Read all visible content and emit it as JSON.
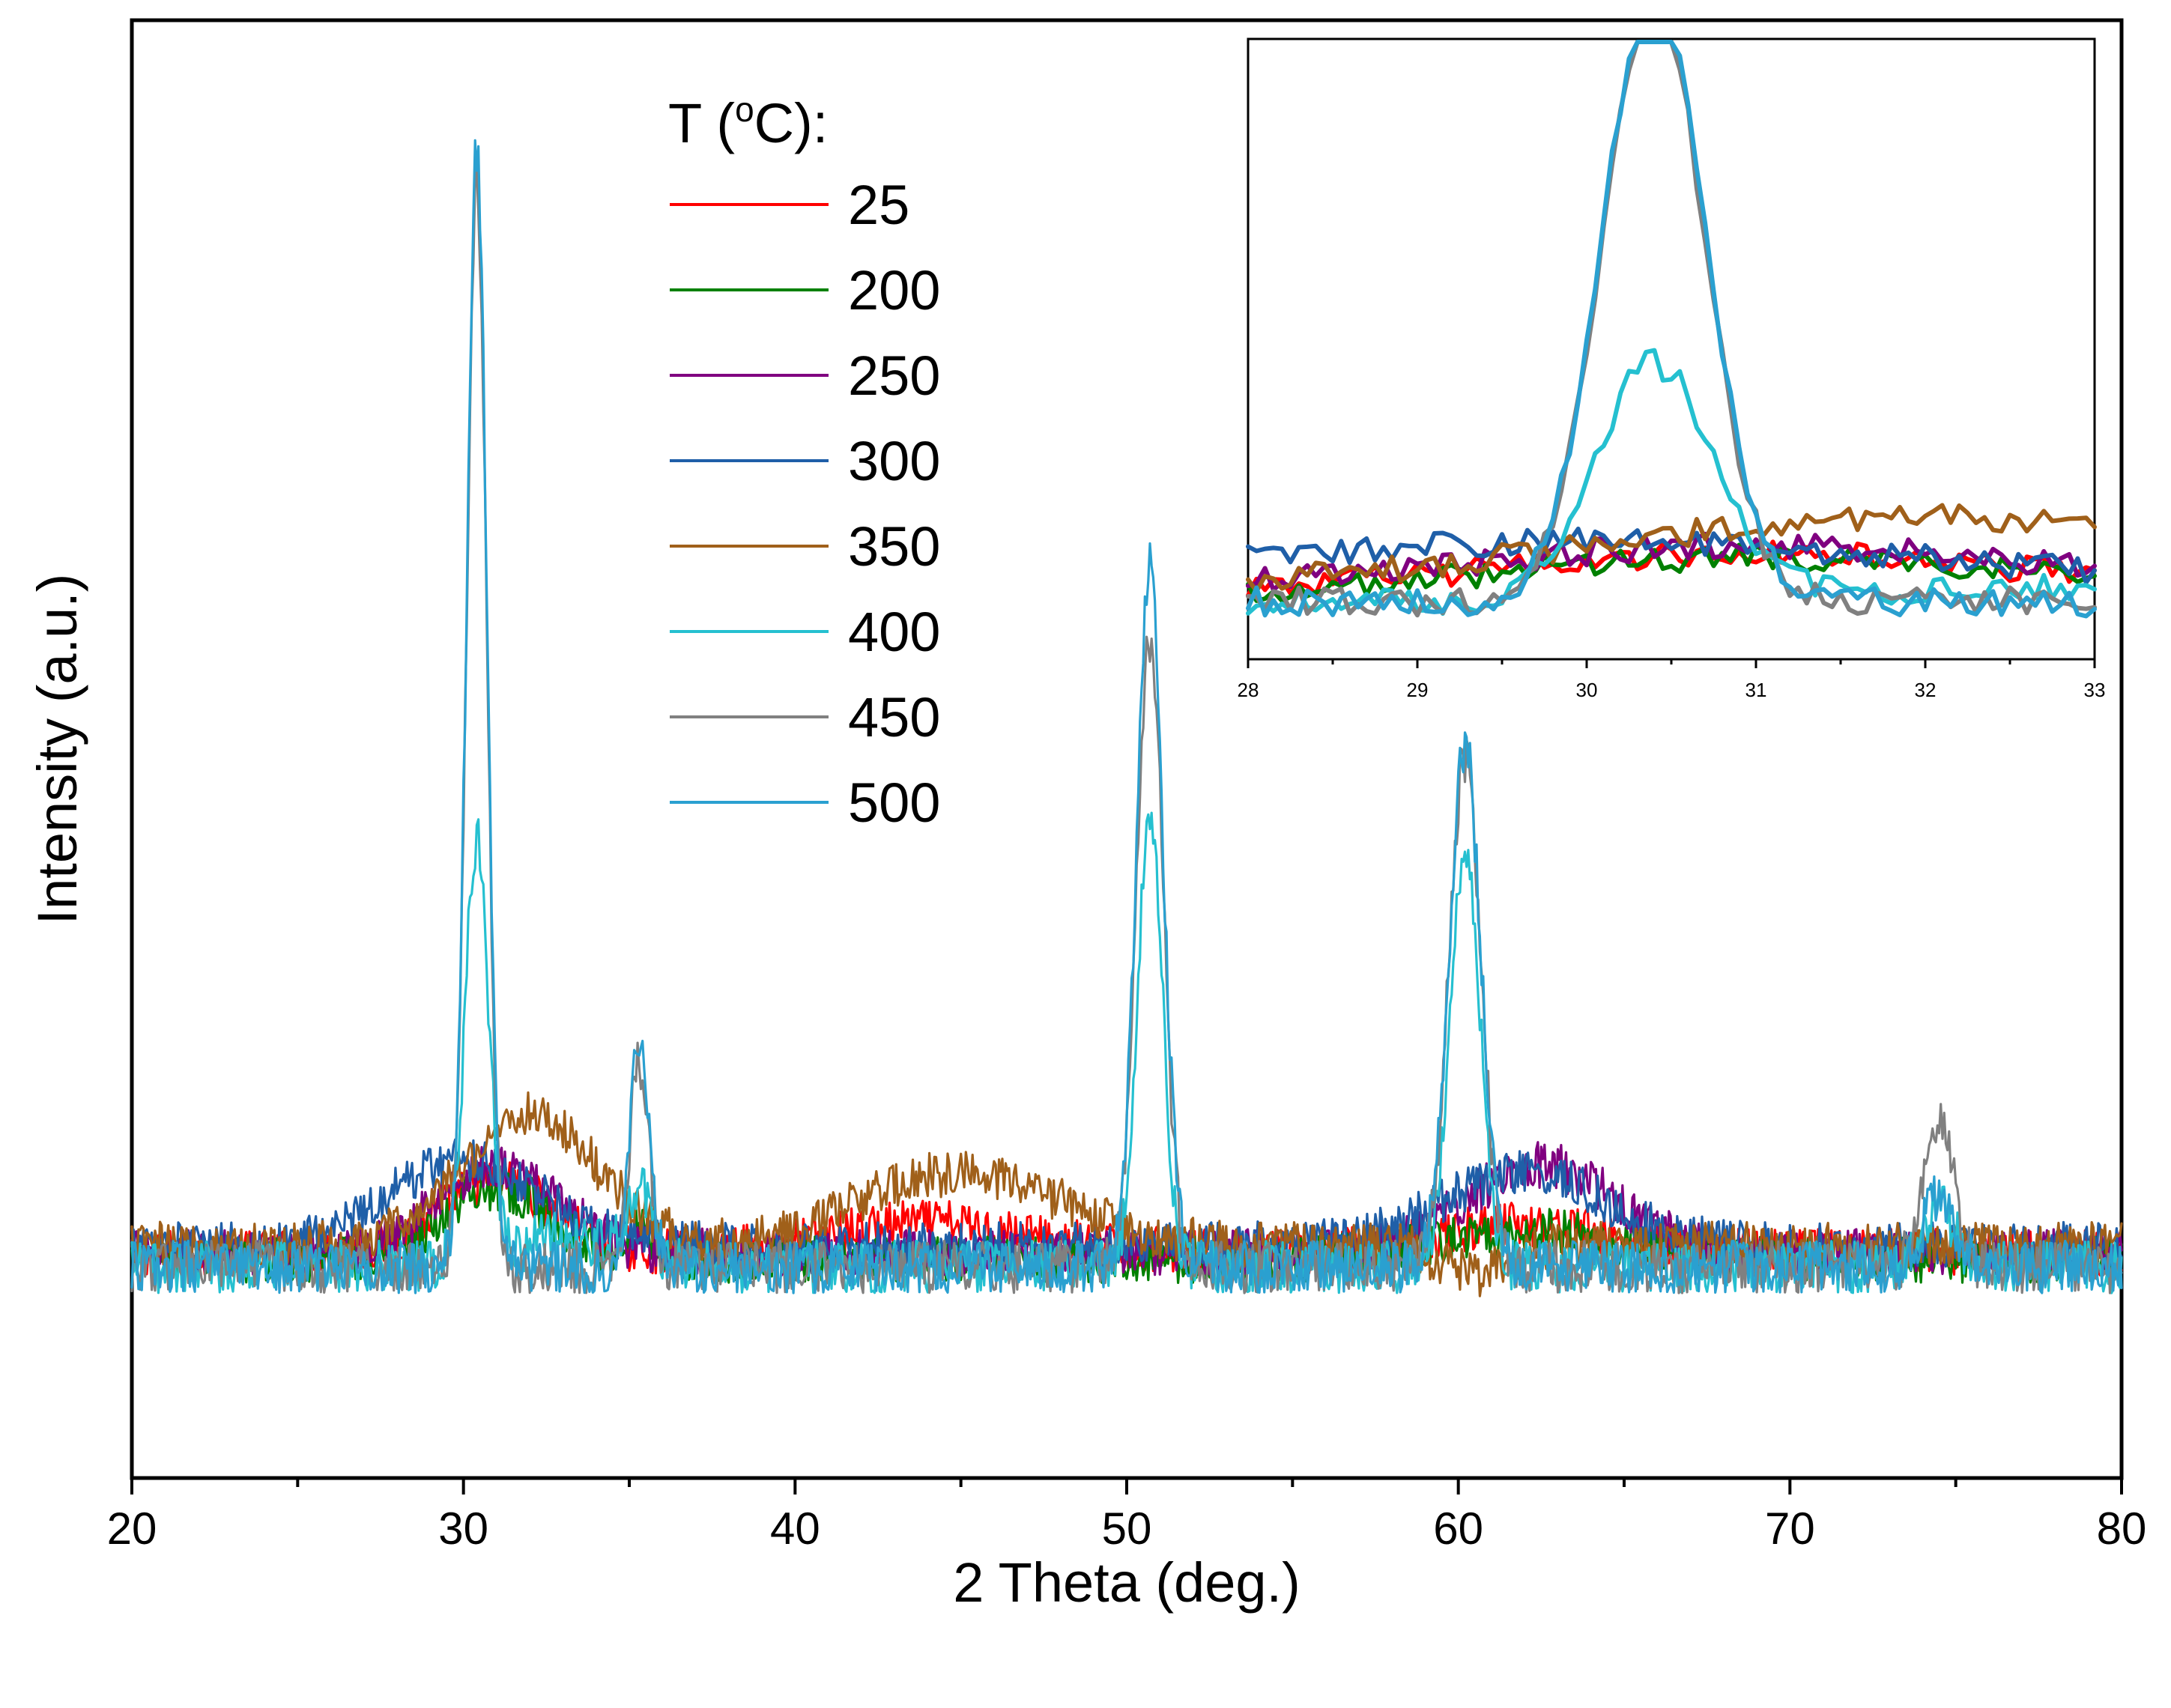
{
  "chart_data": [
    {
      "type": "line",
      "xlabel": "2 Theta (deg.)",
      "ylabel": "Intensity (a.u.)",
      "xlim": [
        20,
        80
      ],
      "ylim": [
        0,
        1
      ],
      "xticks": [
        20,
        30,
        40,
        50,
        60,
        70,
        80
      ],
      "xtick_labels": [
        "20",
        "30",
        "40",
        "50",
        "60",
        "70",
        "80"
      ],
      "y_tick_labels_shown": false,
      "legend": {
        "title_prefix": "T (",
        "title_sup": "o",
        "title_suffix": "C):",
        "placement": "top-center"
      },
      "series": [
        {
          "name": "25",
          "color": "#ff0000",
          "base": 0.145,
          "noise": 0.016,
          "peaks": [
            [
              31.0,
              0.05,
              1.6
            ],
            [
              44.0,
              0.02,
              3.0
            ],
            [
              62.0,
              0.02,
              2.5
            ]
          ]
        },
        {
          "name": "200",
          "color": "#008000",
          "base": 0.14,
          "noise": 0.016,
          "peaks": [
            [
              31.0,
              0.05,
              1.6
            ],
            [
              35.3,
              0.02,
              0.4
            ],
            [
              62.0,
              0.02,
              2.5
            ]
          ]
        },
        {
          "name": "250",
          "color": "#800080",
          "base": 0.145,
          "noise": 0.016,
          "peaks": [
            [
              31.0,
              0.06,
              1.8
            ],
            [
              62.5,
              0.06,
              2.2
            ]
          ]
        },
        {
          "name": "300",
          "color": "#1f5fa8",
          "base": 0.15,
          "noise": 0.016,
          "peaks": [
            [
              30.0,
              0.06,
              2.2
            ],
            [
              62.0,
              0.05,
              2.4
            ]
          ]
        },
        {
          "name": "350",
          "color": "#a0601a",
          "base": 0.15,
          "noise": 0.016,
          "peaks": [
            [
              32.0,
              0.09,
              2.0
            ],
            [
              45.0,
              0.05,
              3.0
            ],
            [
              60.5,
              -0.02,
              1.0
            ]
          ]
        },
        {
          "name": "400",
          "color": "#25c0d0",
          "base": 0.135,
          "noise": 0.018,
          "peaks": [
            [
              30.4,
              0.29,
              0.35
            ],
            [
              35.3,
              0.05,
              0.35
            ],
            [
              50.7,
              0.31,
              0.38
            ],
            [
              60.2,
              0.29,
              0.45
            ],
            [
              74.5,
              0.04,
              0.5
            ],
            [
              33.0,
              0.02,
              1.5
            ]
          ]
        },
        {
          "name": "450",
          "color": "#808080",
          "base": 0.135,
          "noise": 0.018,
          "peaks": [
            [
              30.4,
              0.74,
              0.3
            ],
            [
              35.3,
              0.14,
              0.3
            ],
            [
              50.7,
              0.43,
              0.4
            ],
            [
              60.2,
              0.35,
              0.48
            ],
            [
              74.5,
              0.1,
              0.45
            ]
          ]
        },
        {
          "name": "500",
          "color": "#2aa0d0",
          "base": 0.135,
          "noise": 0.018,
          "peaks": [
            [
              30.4,
              0.77,
              0.3
            ],
            [
              35.3,
              0.15,
              0.3
            ],
            [
              50.7,
              0.48,
              0.4
            ],
            [
              60.2,
              0.36,
              0.48
            ],
            [
              74.5,
              0.05,
              0.45
            ]
          ]
        }
      ]
    },
    {
      "type": "line",
      "title": "inset",
      "xlim": [
        28,
        33
      ],
      "ylim": [
        0,
        1
      ],
      "xticks": [
        28,
        29,
        30,
        31,
        32,
        33
      ],
      "xtick_labels": [
        "28",
        "29",
        "30",
        "31",
        "32",
        "33"
      ],
      "y_tick_labels_shown": false,
      "note": "magnified view of the 30.4 degree peak for all series"
    }
  ]
}
